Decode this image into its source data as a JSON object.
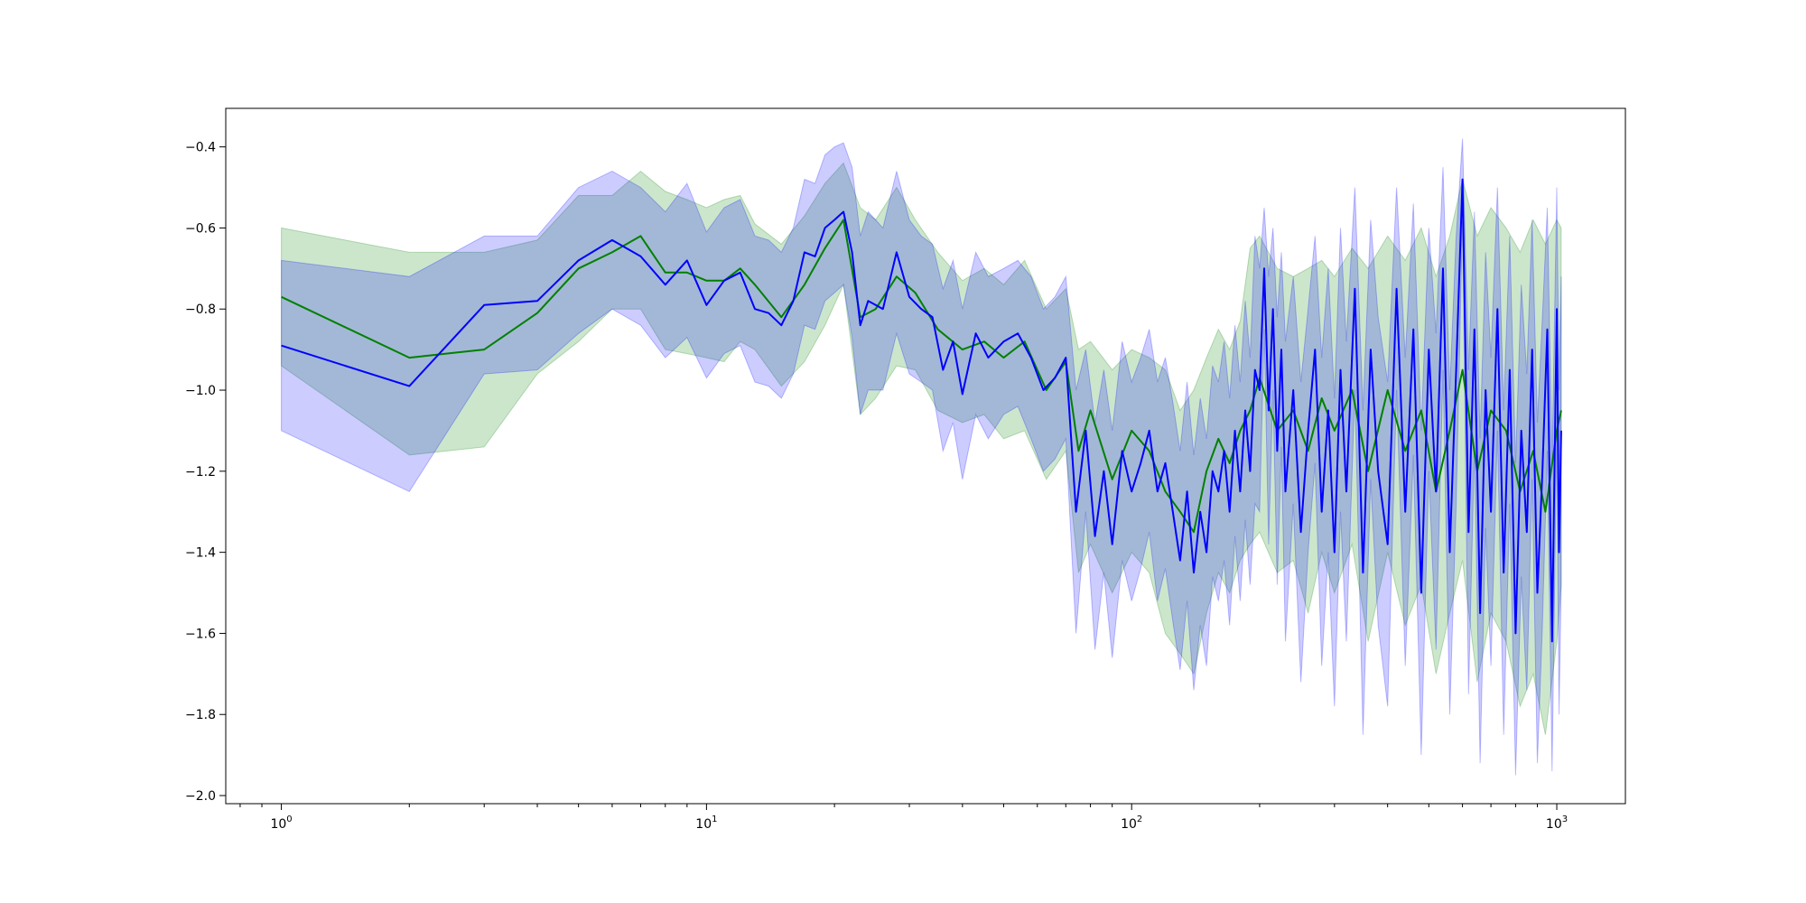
{
  "chart_data": {
    "type": "line",
    "title": "",
    "xlabel": "",
    "ylabel": "",
    "xscale": "log",
    "xlim": [
      0.74,
      1450
    ],
    "ylim": [
      -2.02,
      -0.305
    ],
    "x_ticks": [
      {
        "value": 1,
        "base": "10",
        "exp": "0"
      },
      {
        "value": 10,
        "base": "10",
        "exp": "1"
      },
      {
        "value": 100,
        "base": "10",
        "exp": "2"
      },
      {
        "value": 1000,
        "base": "10",
        "exp": "3"
      }
    ],
    "y_ticks": [
      {
        "value": -0.4,
        "label": "−0.4"
      },
      {
        "value": -0.6,
        "label": "−0.6"
      },
      {
        "value": -0.8,
        "label": "−0.8"
      },
      {
        "value": -1.0,
        "label": "−1.0"
      },
      {
        "value": -1.2,
        "label": "−1.2"
      },
      {
        "value": -1.4,
        "label": "−1.4"
      },
      {
        "value": -1.6,
        "label": "−1.6"
      },
      {
        "value": -1.8,
        "label": "−1.8"
      },
      {
        "value": -2.0,
        "label": "−2.0"
      }
    ],
    "grid": false,
    "legend": "none",
    "series": [
      {
        "color": "#008000",
        "band_color": "#008000",
        "band_opacity": 0.2,
        "x": [
          1,
          2,
          3,
          4,
          5,
          6,
          7,
          8,
          9,
          10,
          11,
          12,
          13,
          15,
          17,
          19,
          21,
          23,
          25,
          28,
          31,
          35,
          40,
          45,
          50,
          56,
          63,
          70,
          75,
          80,
          90,
          100,
          110,
          120,
          130,
          140,
          150,
          160,
          170,
          180,
          190,
          200,
          220,
          240,
          260,
          280,
          300,
          330,
          360,
          400,
          440,
          480,
          520,
          560,
          600,
          650,
          700,
          760,
          820,
          880,
          940,
          1000,
          1024
        ],
        "y": [
          -0.77,
          -0.92,
          -0.9,
          -0.81,
          -0.7,
          -0.66,
          -0.62,
          -0.71,
          -0.71,
          -0.73,
          -0.73,
          -0.7,
          -0.74,
          -0.82,
          -0.74,
          -0.65,
          -0.58,
          -0.82,
          -0.8,
          -0.72,
          -0.76,
          -0.85,
          -0.9,
          -0.88,
          -0.92,
          -0.88,
          -1.0,
          -0.93,
          -1.15,
          -1.05,
          -1.22,
          -1.1,
          -1.15,
          -1.25,
          -1.3,
          -1.35,
          -1.2,
          -1.12,
          -1.18,
          -1.1,
          -1.05,
          -0.97,
          -1.1,
          -1.05,
          -1.15,
          -1.02,
          -1.1,
          -1.0,
          -1.2,
          -1.0,
          -1.15,
          -1.05,
          -1.25,
          -1.1,
          -0.95,
          -1.2,
          -1.05,
          -1.1,
          -1.25,
          -1.15,
          -1.3,
          -1.1,
          -1.05
        ],
        "upper": [
          -0.6,
          -0.66,
          -0.66,
          -0.63,
          -0.52,
          -0.52,
          -0.46,
          -0.51,
          -0.53,
          -0.55,
          -0.53,
          -0.52,
          -0.59,
          -0.64,
          -0.57,
          -0.49,
          -0.44,
          -0.55,
          -0.58,
          -0.5,
          -0.58,
          -0.66,
          -0.73,
          -0.7,
          -0.74,
          -0.68,
          -0.8,
          -0.75,
          -0.9,
          -0.88,
          -0.95,
          -0.9,
          -0.92,
          -0.95,
          -1.05,
          -1.0,
          -0.92,
          -0.85,
          -0.9,
          -0.83,
          -0.65,
          -0.62,
          -0.7,
          -0.72,
          -0.7,
          -0.68,
          -0.72,
          -0.65,
          -0.7,
          -0.62,
          -0.68,
          -0.6,
          -0.72,
          -0.62,
          -0.48,
          -0.62,
          -0.55,
          -0.6,
          -0.66,
          -0.58,
          -0.64,
          -0.58,
          -0.6
        ],
        "lower": [
          -0.94,
          -1.16,
          -1.14,
          -0.96,
          -0.88,
          -0.8,
          -0.8,
          -0.9,
          -0.91,
          -0.92,
          -0.93,
          -0.88,
          -0.9,
          -0.99,
          -0.93,
          -0.84,
          -0.74,
          -1.06,
          -1.02,
          -0.94,
          -0.95,
          -1.05,
          -1.08,
          -1.06,
          -1.12,
          -1.1,
          -1.22,
          -1.15,
          -1.45,
          -1.38,
          -1.5,
          -1.4,
          -1.45,
          -1.6,
          -1.65,
          -1.7,
          -1.55,
          -1.45,
          -1.5,
          -1.42,
          -1.38,
          -1.35,
          -1.45,
          -1.42,
          -1.55,
          -1.4,
          -1.5,
          -1.38,
          -1.62,
          -1.4,
          -1.58,
          -1.48,
          -1.7,
          -1.55,
          -1.42,
          -1.72,
          -1.55,
          -1.62,
          -1.78,
          -1.7,
          -1.85,
          -1.62,
          -1.48
        ]
      },
      {
        "color": "#0000ff",
        "band_color": "#0000ff",
        "band_opacity": 0.2,
        "x": [
          1,
          2,
          3,
          4,
          5,
          6,
          7,
          8,
          9,
          10,
          11,
          12,
          13,
          14,
          15,
          16,
          17,
          18,
          19,
          20,
          21,
          22,
          23,
          24,
          25,
          26,
          28,
          30,
          32,
          34,
          36,
          38,
          40,
          43,
          46,
          50,
          54,
          58,
          62,
          66,
          70,
          74,
          78,
          82,
          86,
          90,
          95,
          100,
          105,
          110,
          115,
          120,
          125,
          130,
          135,
          140,
          145,
          150,
          155,
          160,
          165,
          170,
          175,
          180,
          185,
          190,
          195,
          200,
          205,
          210,
          215,
          220,
          225,
          230,
          240,
          250,
          260,
          270,
          280,
          290,
          300,
          310,
          320,
          335,
          350,
          365,
          380,
          400,
          420,
          440,
          460,
          480,
          500,
          520,
          540,
          560,
          580,
          600,
          620,
          640,
          660,
          680,
          700,
          725,
          750,
          775,
          800,
          825,
          850,
          875,
          900,
          925,
          950,
          975,
          1000,
          1012,
          1024
        ],
        "y": [
          -0.89,
          -0.99,
          -0.79,
          -0.78,
          -0.68,
          -0.63,
          -0.67,
          -0.74,
          -0.68,
          -0.79,
          -0.73,
          -0.71,
          -0.8,
          -0.81,
          -0.84,
          -0.78,
          -0.66,
          -0.67,
          -0.6,
          -0.58,
          -0.56,
          -0.66,
          -0.84,
          -0.78,
          -0.79,
          -0.8,
          -0.66,
          -0.77,
          -0.8,
          -0.82,
          -0.95,
          -0.88,
          -1.01,
          -0.86,
          -0.92,
          -0.88,
          -0.86,
          -0.92,
          -1.0,
          -0.97,
          -0.92,
          -1.3,
          -1.1,
          -1.36,
          -1.2,
          -1.38,
          -1.15,
          -1.25,
          -1.18,
          -1.1,
          -1.25,
          -1.18,
          -1.3,
          -1.42,
          -1.25,
          -1.45,
          -1.3,
          -1.4,
          -1.2,
          -1.25,
          -1.15,
          -1.3,
          -1.1,
          -1.25,
          -1.05,
          -1.2,
          -0.95,
          -1.0,
          -0.7,
          -1.05,
          -0.8,
          -1.15,
          -0.9,
          -1.25,
          -1.0,
          -1.35,
          -1.1,
          -0.9,
          -1.3,
          -1.05,
          -1.4,
          -0.95,
          -1.25,
          -0.75,
          -1.45,
          -0.9,
          -1.2,
          -1.38,
          -0.75,
          -1.3,
          -0.85,
          -1.5,
          -0.9,
          -1.25,
          -0.7,
          -1.4,
          -0.95,
          -0.48,
          -1.35,
          -0.85,
          -1.55,
          -1.0,
          -1.3,
          -0.8,
          -1.45,
          -0.95,
          -1.6,
          -1.1,
          -1.35,
          -0.9,
          -1.5,
          -1.2,
          -0.85,
          -1.62,
          -0.8,
          -1.4,
          -1.1
        ],
        "upper": [
          -0.68,
          -0.72,
          -0.62,
          -0.62,
          -0.5,
          -0.46,
          -0.5,
          -0.56,
          -0.49,
          -0.61,
          -0.55,
          -0.53,
          -0.62,
          -0.63,
          -0.66,
          -0.6,
          -0.48,
          -0.49,
          -0.42,
          -0.4,
          -0.39,
          -0.45,
          -0.62,
          -0.56,
          -0.58,
          -0.6,
          -0.46,
          -0.58,
          -0.62,
          -0.64,
          -0.75,
          -0.68,
          -0.8,
          -0.66,
          -0.72,
          -0.7,
          -0.68,
          -0.72,
          -0.8,
          -0.77,
          -0.72,
          -1.0,
          -0.9,
          -1.08,
          -0.95,
          -1.1,
          -0.88,
          -0.98,
          -0.92,
          -0.85,
          -0.98,
          -0.92,
          -1.03,
          -1.15,
          -0.98,
          -1.16,
          -1.02,
          -1.12,
          -0.94,
          -0.98,
          -0.88,
          -1.02,
          -0.84,
          -0.98,
          -0.78,
          -0.92,
          -0.62,
          -0.7,
          -0.55,
          -0.72,
          -0.6,
          -0.82,
          -0.66,
          -0.88,
          -0.72,
          -0.98,
          -0.8,
          -0.62,
          -0.92,
          -0.7,
          -1.02,
          -0.6,
          -0.88,
          -0.5,
          -1.05,
          -0.58,
          -0.82,
          -0.98,
          -0.5,
          -0.92,
          -0.54,
          -1.1,
          -0.6,
          -0.86,
          -0.45,
          -1.0,
          -0.62,
          -0.38,
          -0.95,
          -0.56,
          -1.12,
          -0.66,
          -0.92,
          -0.5,
          -1.05,
          -0.62,
          -1.18,
          -0.74,
          -0.96,
          -0.58,
          -1.08,
          -0.82,
          -0.55,
          -1.18,
          -0.5,
          -1.0,
          -0.72
        ],
        "lower": [
          -1.1,
          -1.25,
          -0.96,
          -0.95,
          -0.86,
          -0.8,
          -0.84,
          -0.92,
          -0.87,
          -0.97,
          -0.91,
          -0.89,
          -0.98,
          -0.99,
          -1.02,
          -0.96,
          -0.84,
          -0.85,
          -0.78,
          -0.76,
          -0.74,
          -0.87,
          -1.06,
          -1.0,
          -1.0,
          -1.0,
          -0.86,
          -0.96,
          -0.98,
          -1.0,
          -1.15,
          -1.08,
          -1.22,
          -1.06,
          -1.12,
          -1.06,
          -1.04,
          -1.12,
          -1.2,
          -1.17,
          -1.12,
          -1.6,
          -1.3,
          -1.64,
          -1.45,
          -1.66,
          -1.42,
          -1.52,
          -1.44,
          -1.35,
          -1.52,
          -1.44,
          -1.57,
          -1.69,
          -1.52,
          -1.74,
          -1.58,
          -1.68,
          -1.46,
          -1.52,
          -1.42,
          -1.58,
          -1.36,
          -1.52,
          -1.32,
          -1.48,
          -1.28,
          -1.3,
          -0.85,
          -1.38,
          -1.0,
          -1.48,
          -1.14,
          -1.62,
          -1.28,
          -1.72,
          -1.4,
          -1.18,
          -1.68,
          -1.4,
          -1.78,
          -1.3,
          -1.62,
          -1.0,
          -1.85,
          -1.22,
          -1.58,
          -1.78,
          -1.0,
          -1.68,
          -1.16,
          -1.9,
          -1.2,
          -1.64,
          -0.95,
          -1.8,
          -1.28,
          -0.58,
          -1.75,
          -1.14,
          -1.92,
          -1.34,
          -1.68,
          -1.1,
          -1.85,
          -1.28,
          -1.95,
          -1.46,
          -1.74,
          -1.22,
          -1.92,
          -1.58,
          -1.15,
          -1.94,
          -1.1,
          -1.8,
          -1.48
        ]
      }
    ]
  }
}
